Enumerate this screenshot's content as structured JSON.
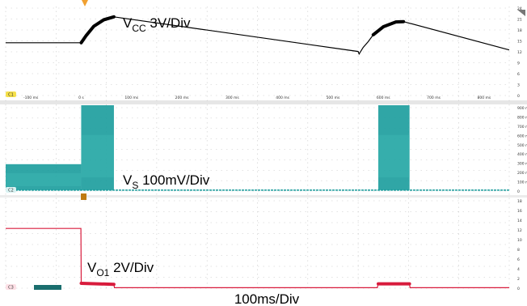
{
  "chart_data": {
    "type": "line",
    "timebase_label": "100ms/Div",
    "x_ticks": [
      "-100 ms",
      "0 s",
      "100 ms",
      "200 ms",
      "300 ms",
      "400 ms",
      "500 ms",
      "600 ms",
      "700 ms",
      "800 ms"
    ],
    "xlim_ms": [
      -150,
      850
    ],
    "channels": [
      {
        "id": "C1",
        "name_main": "V",
        "name_sub": "CC",
        "scale": " 3V/Div",
        "color": "#000000",
        "y_ticks": [
          "24",
          "21",
          "18",
          "15",
          "12",
          "9",
          "6",
          "3",
          "0"
        ],
        "ylim": [
          0,
          24
        ],
        "points": [
          [
            -150,
            14.5
          ],
          [
            0,
            14.5
          ],
          [
            10,
            16.5
          ],
          [
            25,
            19.0
          ],
          [
            45,
            20.8
          ],
          [
            65,
            21.6
          ],
          [
            550,
            12.1
          ],
          [
            552,
            11.4
          ],
          [
            560,
            13.2
          ],
          [
            570,
            14.8
          ],
          [
            580,
            16.7
          ],
          [
            600,
            18.9
          ],
          [
            625,
            20.2
          ],
          [
            640,
            20.3
          ],
          [
            850,
            12.5
          ]
        ],
        "noisy_ranges_ms": [
          [
            0,
            65
          ],
          [
            580,
            640
          ]
        ]
      },
      {
        "id": "C2",
        "name_main": "V",
        "name_sub": "S",
        "scale": " 100mV/Div",
        "color": "#1a9c9c",
        "y_ticks": [
          "900 m",
          "800 m",
          "700 m",
          "600 m",
          "500 m",
          "400 m",
          "300 m",
          "200 m",
          "100 m",
          "0"
        ],
        "ylim": [
          0,
          0.9
        ],
        "baseline": 0.01,
        "bursts": [
          {
            "start_ms": -150,
            "end_ms": 0,
            "low": 0.01,
            "high": 0.29
          },
          {
            "start_ms": 0,
            "end_ms": 65,
            "low": 0.01,
            "high": 0.95
          },
          {
            "start_ms": 590,
            "end_ms": 652,
            "low": 0.01,
            "high": 0.95
          }
        ]
      },
      {
        "id": "C3",
        "name_main": "V",
        "name_sub": "O1",
        "scale": " 2V/Div",
        "color": "#d81b3c",
        "y_ticks": [
          "18",
          "16",
          "14",
          "12",
          "10",
          "8",
          "6",
          "4",
          "2",
          "0"
        ],
        "ylim": [
          0,
          18
        ],
        "points": [
          [
            -150,
            12.3
          ],
          [
            -0.5,
            12.3
          ],
          [
            0,
            1.0
          ],
          [
            65,
            0.8
          ],
          [
            66,
            0.1
          ],
          [
            588,
            0.1
          ],
          [
            590,
            0.9
          ],
          [
            652,
            0.9
          ],
          [
            653,
            0.1
          ],
          [
            850,
            0.1
          ]
        ],
        "noisy_ranges_ms": [
          [
            0,
            65
          ],
          [
            590,
            652
          ]
        ]
      }
    ]
  }
}
